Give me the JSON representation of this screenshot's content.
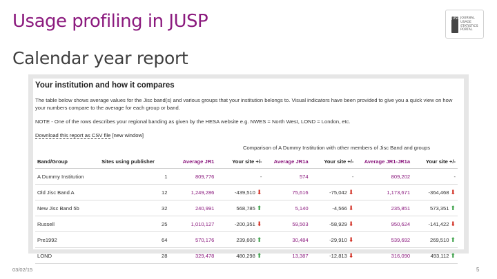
{
  "slide": {
    "title": "Usage profiling in JUSP",
    "subtitle": "Calendar year report",
    "date": "03/02/15",
    "page": "5",
    "logo_lines": [
      "Journal",
      "Usage",
      "Statistics",
      "Portal"
    ],
    "logo_mark": "JUSP"
  },
  "panel": {
    "title": "Your institution and how it compares",
    "description": "The table below shows average values for the Jisc band(s) and various groups that your institution belongs to. Visual indicators have been provided to give you a quick view on how your numbers compare to the average for each group or band.",
    "note": "NOTE - One of the rows describes your regional banding as given by the HESA website e.g. NWES = North West, LOND = London, etc.",
    "download_link": "Download this report as CSV file",
    "new_window": "[new window]",
    "caption": "Comparison of A Dummy Institution with other members of Jisc Band and groups"
  },
  "table": {
    "headers": [
      "Band/Group",
      "Sites using publisher",
      "Average JR1",
      "Your site +/-",
      "Average JR1a",
      "Your site +/-",
      "Average JR1-JR1a",
      "Your site +/-"
    ],
    "rows": [
      {
        "group": "A Dummy Institution",
        "sites": "1",
        "avg_jr1": "809,776",
        "diff_jr1": "-",
        "dir_jr1": "none",
        "avg_jr1a": "574",
        "diff_jr1a": "-",
        "dir_jr1a": "none",
        "avg_net": "809,202",
        "diff_net": "-",
        "dir_net": "none"
      },
      {
        "group": "Old Jisc Band A",
        "sites": "12",
        "avg_jr1": "1,249,286",
        "diff_jr1": "-439,510",
        "dir_jr1": "down",
        "avg_jr1a": "75,616",
        "diff_jr1a": "-75,042",
        "dir_jr1a": "down",
        "avg_net": "1,173,671",
        "diff_net": "-364,468",
        "dir_net": "down"
      },
      {
        "group": "New Jisc Band 5b",
        "sites": "32",
        "avg_jr1": "240,991",
        "diff_jr1": "568,785",
        "dir_jr1": "up",
        "avg_jr1a": "5,140",
        "diff_jr1a": "-4,566",
        "dir_jr1a": "down",
        "avg_net": "235,851",
        "diff_net": "573,351",
        "dir_net": "up"
      },
      {
        "group": "Russell",
        "sites": "25",
        "avg_jr1": "1,010,127",
        "diff_jr1": "-200,351",
        "dir_jr1": "down",
        "avg_jr1a": "59,503",
        "diff_jr1a": "-58,929",
        "dir_jr1a": "down",
        "avg_net": "950,624",
        "diff_net": "-141,422",
        "dir_net": "down"
      },
      {
        "group": "Pre1992",
        "sites": "64",
        "avg_jr1": "570,176",
        "diff_jr1": "239,600",
        "dir_jr1": "up",
        "avg_jr1a": "30,484",
        "diff_jr1a": "-29,910",
        "dir_jr1a": "down",
        "avg_net": "539,692",
        "diff_net": "269,510",
        "dir_net": "up"
      },
      {
        "group": "LOND",
        "sites": "28",
        "avg_jr1": "329,478",
        "diff_jr1": "480,298",
        "dir_jr1": "up",
        "avg_jr1a": "13,387",
        "diff_jr1a": "-12,813",
        "dir_jr1a": "down",
        "avg_net": "316,090",
        "diff_net": "493,112",
        "dir_net": "up"
      }
    ]
  },
  "colors": {
    "brand": "#8b1a7e",
    "up": "#3aa047",
    "down": "#d0271b"
  },
  "icons": {
    "up": "arrow-up-icon",
    "down": "arrow-down-icon"
  }
}
